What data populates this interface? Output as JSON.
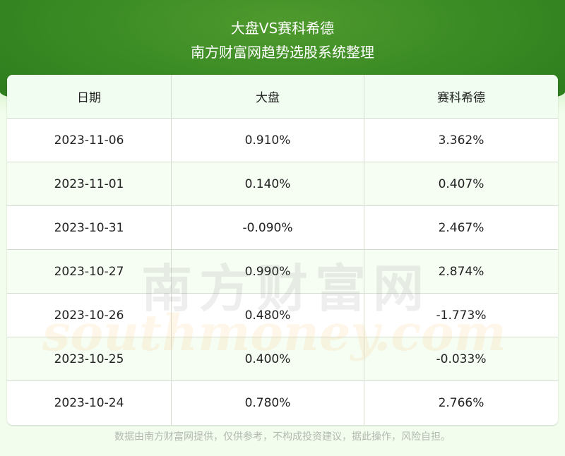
{
  "header": {
    "title": "大盘VS赛科希德",
    "subtitle": "南方财富网趋势选股系统整理"
  },
  "table": {
    "columns": [
      "日期",
      "大盘",
      "赛科希德"
    ],
    "rows": [
      [
        "2023-11-06",
        "0.910%",
        "3.362%"
      ],
      [
        "2023-11-01",
        "0.140%",
        "0.407%"
      ],
      [
        "2023-10-31",
        "-0.090%",
        "2.467%"
      ],
      [
        "2023-10-27",
        "0.990%",
        "2.874%"
      ],
      [
        "2023-10-26",
        "0.480%",
        "-1.773%"
      ],
      [
        "2023-10-25",
        "0.400%",
        "-0.033%"
      ],
      [
        "2023-10-24",
        "0.780%",
        "2.766%"
      ]
    ]
  },
  "watermark": {
    "cn": "南方财富网",
    "en": "southmoney.com"
  },
  "footer": "数据由南方财富网提供，仅供参考，不构成投资建议，据此操作，风险自担。",
  "colors": {
    "banner": "#3c8c25",
    "header_row": "#f0fdf0",
    "page_bg": "#f2fdee"
  }
}
